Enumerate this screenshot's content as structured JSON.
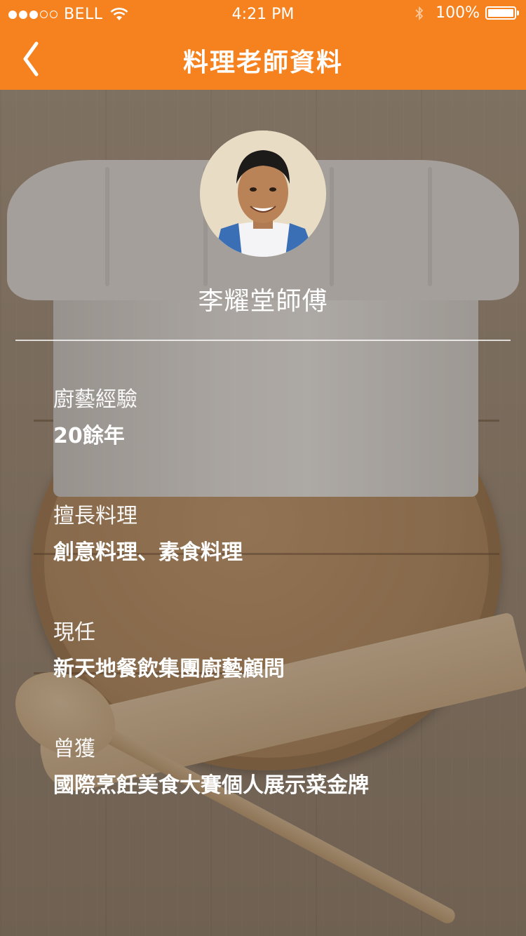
{
  "status_bar": {
    "carrier": "BELL",
    "signal_dots_filled": 3,
    "signal_dots_total": 5,
    "time": "4:21 PM",
    "battery": "100%",
    "battery_level": 1.0,
    "icons": [
      "wifi-icon",
      "bluetooth-icon",
      "battery-icon"
    ]
  },
  "nav": {
    "title": "料理老師資料",
    "back_icon": "chevron-left-icon",
    "bar_color": "#f5821f"
  },
  "profile": {
    "name": "李耀堂師傅",
    "avatar": "chef-portrait"
  },
  "details": [
    {
      "label": "廚藝經驗",
      "value": "20餘年"
    },
    {
      "label": "擅長料理",
      "value": "創意料理、素食料理"
    },
    {
      "label": "現任",
      "value": "新天地餐飲集團廚藝顧問"
    },
    {
      "label": "曾獲",
      "value": "國際烹飪美食大賽個人展示菜金牌"
    }
  ]
}
